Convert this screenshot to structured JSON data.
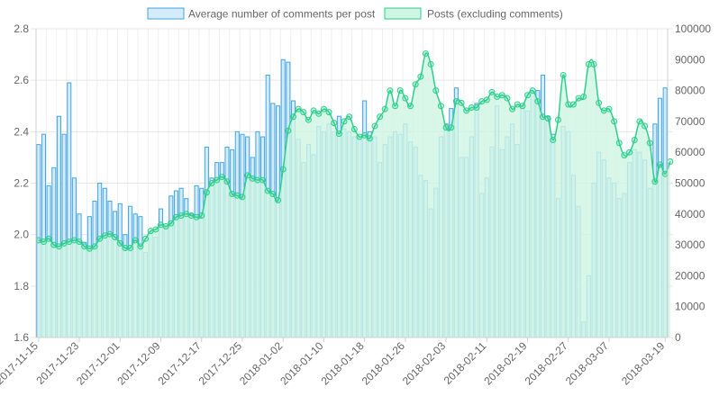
{
  "chart_data": {
    "type": "bar",
    "legend": [
      {
        "label": "Average number of comments per post",
        "fill": "#d4ebfa",
        "stroke": "#45a6e0"
      },
      {
        "label": "Posts (excluding comments)",
        "fill": "#cff5e4",
        "stroke": "#2ecf8c"
      }
    ],
    "legend_position": "top",
    "grid": true,
    "y_left": {
      "min": 1.6,
      "max": 2.8,
      "ticks": [
        "1.6",
        "1.8",
        "2.0",
        "2.2",
        "2.4",
        "2.6",
        "2.8"
      ]
    },
    "y_right": {
      "min": 0,
      "max": 100000,
      "ticks": [
        "0",
        "10000",
        "20000",
        "30000",
        "40000",
        "50000",
        "60000",
        "70000",
        "80000",
        "90000",
        "100000"
      ]
    },
    "x_start": "2017-11-15",
    "x_end": "2018-03-20",
    "x_tick_labels": [
      "2017-11-15",
      "2017-11-23",
      "2017-12-01",
      "2017-12-09",
      "2017-12-17",
      "2017-12-25",
      "2018-01-02",
      "2018-01-10",
      "2018-01-18",
      "2018-01-26",
      "2018-02-03",
      "2018-02-11",
      "2018-02-19",
      "2018-02-27",
      "2018-03-07",
      "2018-03-19"
    ],
    "series": [
      {
        "name": "Average number of comments per post",
        "axis": "left",
        "kind": "bar",
        "values": [
          2.35,
          2.39,
          2.19,
          2.26,
          2.46,
          2.39,
          2.59,
          2.22,
          2.08,
          1.97,
          2.07,
          2.13,
          2.2,
          2.18,
          2.13,
          2.09,
          2.12,
          2.0,
          2.11,
          2.08,
          2.07,
          1.93,
          2.01,
          1.99,
          2.1,
          2.03,
          2.15,
          2.17,
          2.18,
          2.14,
          2.08,
          2.19,
          2.18,
          2.34,
          2.22,
          2.28,
          2.28,
          2.34,
          2.33,
          2.4,
          2.39,
          2.38,
          2.3,
          2.4,
          2.38,
          2.62,
          2.51,
          2.5,
          2.68,
          2.67,
          2.52,
          2.37,
          2.28,
          2.35,
          2.31,
          2.42,
          2.4,
          2.43,
          2.4,
          2.46,
          2.41,
          2.4,
          2.38,
          2.38,
          2.52,
          2.4,
          2.38,
          2.28,
          2.35,
          2.38,
          2.4,
          2.39,
          2.43,
          2.36,
          2.34,
          2.23,
          2.21,
          2.1,
          2.18,
          2.38,
          2.43,
          2.49,
          2.57,
          2.3,
          2.3,
          2.38,
          2.51,
          2.16,
          2.22,
          2.34,
          2.5,
          2.33,
          2.38,
          2.43,
          2.35,
          2.5,
          2.48,
          2.55,
          2.56,
          2.62,
          2.46,
          2.39,
          2.14,
          2.42,
          2.4,
          2.23,
          2.11,
          1.66,
          1.84,
          2.2,
          2.32,
          2.29,
          2.22,
          2.2,
          2.14,
          2.16,
          2.28,
          2.33,
          2.32,
          2.29,
          2.18,
          2.43,
          2.53,
          2.57
        ]
      },
      {
        "name": "Posts (excluding comments)",
        "axis": "right",
        "kind": "line",
        "values": [
          31500,
          31000,
          32000,
          30000,
          29500,
          30500,
          31000,
          31500,
          31000,
          29500,
          28800,
          29500,
          32000,
          33000,
          33500,
          32500,
          30500,
          29000,
          29000,
          31500,
          29500,
          32000,
          34500,
          35000,
          36500,
          36000,
          37000,
          39000,
          39500,
          40000,
          39500,
          39000,
          39500,
          47000,
          50000,
          51000,
          52000,
          50500,
          46500,
          46000,
          45500,
          52500,
          51500,
          51000,
          51000,
          47500,
          46500,
          44500,
          54500,
          67000,
          71500,
          74000,
          73000,
          70500,
          73500,
          72500,
          74000,
          73000,
          69500,
          66000,
          70000,
          71500,
          67500,
          65000,
          65500,
          64500,
          68500,
          71500,
          74000,
          80000,
          75000,
          80000,
          77500,
          75000,
          82000,
          84500,
          92000,
          88500,
          80000,
          75000,
          68000,
          68000,
          76500,
          76000,
          73500,
          74500,
          74500,
          76500,
          77000,
          79500,
          78000,
          78500,
          77500,
          74000,
          75500,
          75000,
          78500,
          80000,
          76500,
          71500,
          71000,
          64000,
          70500,
          85000,
          75500,
          75500,
          77500,
          78000,
          88500,
          88500,
          76000,
          73500,
          74000,
          70000,
          63000,
          59000,
          60000,
          64000,
          70000,
          68500,
          63000,
          50500,
          56000,
          53000,
          57000
        ]
      }
    ]
  }
}
